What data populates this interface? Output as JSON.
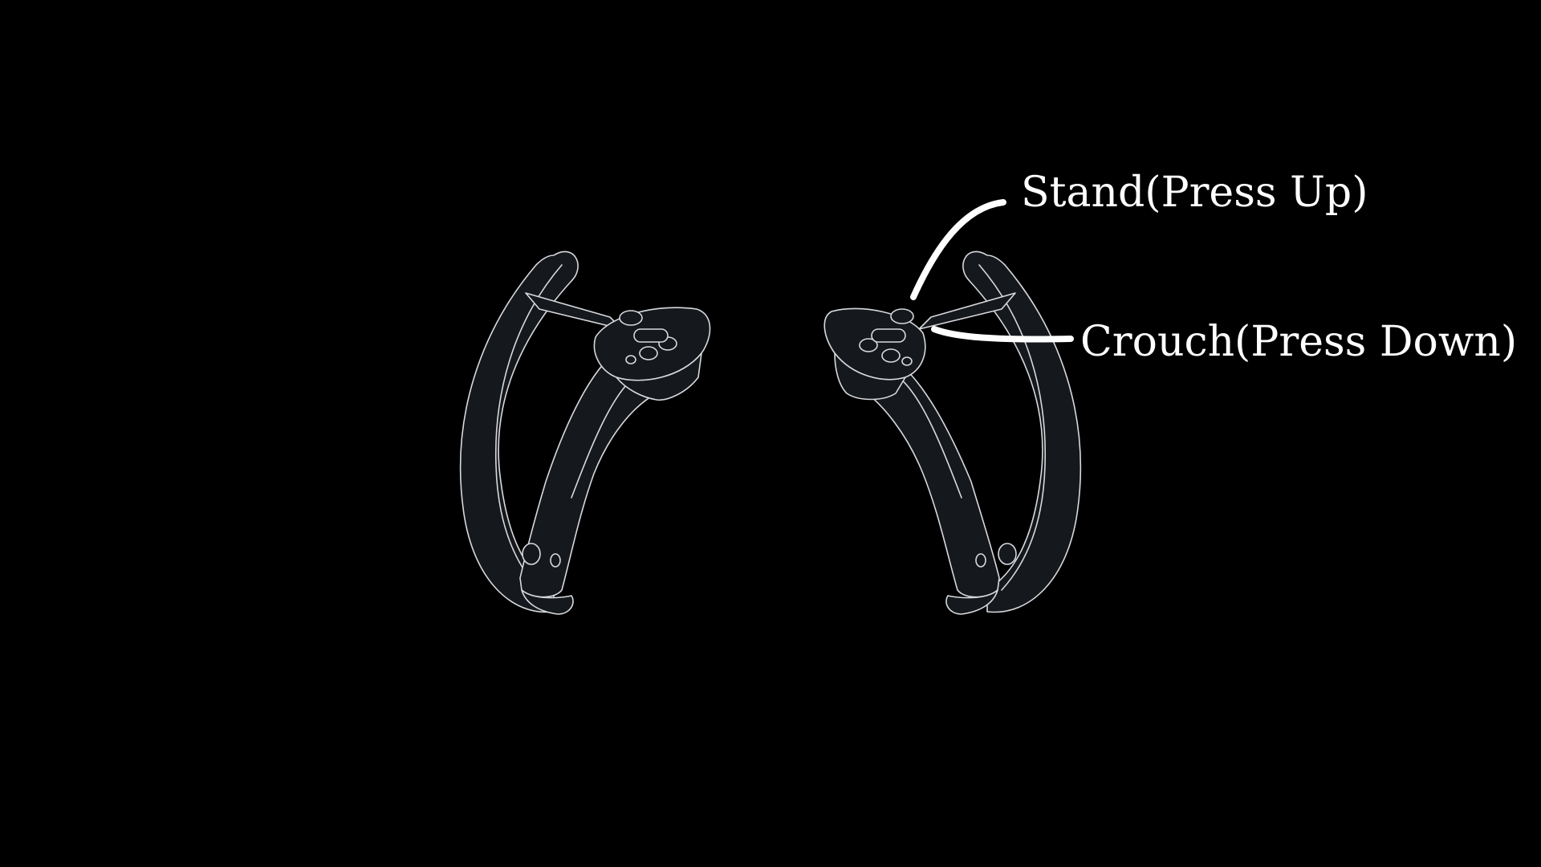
{
  "colors": {
    "background": "#000000",
    "controller_fill": "#15181d",
    "controller_outline": "#d7d9dd",
    "callout": "#ffffff"
  },
  "controllers": {
    "left": {
      "icon": "left-vr-controller-icon"
    },
    "right": {
      "icon": "right-vr-controller-icon"
    }
  },
  "callouts": {
    "stand": "Stand(Press Up)",
    "crouch": "Crouch(Press Down)"
  }
}
